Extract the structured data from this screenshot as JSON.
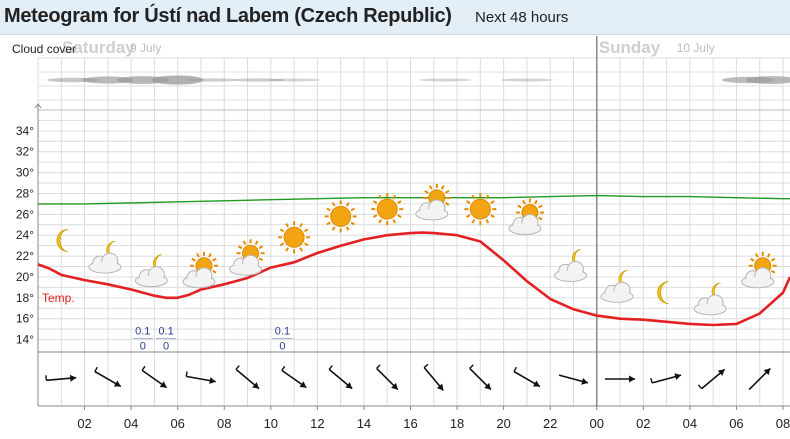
{
  "header": {
    "title": "Meteogram for Ústí nad Labem (Czech Republic)",
    "subtitle": "Next 48 hours"
  },
  "chart_data": {
    "type": "line",
    "days": [
      {
        "name": "Saturday",
        "date": "9 July",
        "start_hour": 0
      },
      {
        "name": "Sunday",
        "date": "10 July",
        "start_hour": 24
      }
    ],
    "cloud_cover_label": "Cloud cover",
    "temp_label": "Temp.",
    "y_ticks": [
      "34°",
      "32°",
      "30°",
      "28°",
      "26°",
      "24°",
      "22°",
      "20°",
      "18°",
      "16°",
      "14°"
    ],
    "ylim": [
      13,
      36
    ],
    "x_tick_labels": [
      "02",
      "04",
      "06",
      "08",
      "10",
      "12",
      "14",
      "16",
      "18",
      "20",
      "22",
      "00",
      "02",
      "04",
      "06",
      "08"
    ],
    "x_ticks_hours": [
      2,
      4,
      6,
      8,
      10,
      12,
      14,
      16,
      18,
      20,
      22,
      24,
      26,
      28,
      30,
      32
    ],
    "xlim": [
      0,
      32.3
    ],
    "grid": true,
    "series": [
      {
        "name": "Temp.",
        "color": "#e32022",
        "x": [
          0,
          0.5,
          1,
          2,
          3,
          4,
          5,
          5.5,
          6,
          6.5,
          7,
          8,
          9,
          10,
          11,
          12,
          13,
          14,
          15,
          16,
          16.5,
          17,
          18,
          19,
          20,
          21,
          22,
          23,
          24,
          25,
          26,
          27,
          28,
          29,
          30,
          31,
          32,
          32.3
        ],
        "values": [
          21.2,
          20.8,
          20.2,
          19.7,
          19.3,
          18.8,
          18.2,
          18.0,
          18.0,
          18.3,
          18.8,
          19.3,
          19.9,
          20.9,
          21.4,
          22.3,
          23.0,
          23.6,
          24.0,
          24.2,
          24.25,
          24.2,
          24.0,
          23.4,
          21.6,
          19.6,
          17.9,
          16.9,
          16.3,
          16.0,
          15.9,
          15.7,
          15.5,
          15.4,
          15.5,
          16.5,
          18.5,
          20.0
        ]
      },
      {
        "name": "",
        "color": "#1e9a1e",
        "x": [
          0,
          2,
          4,
          6,
          8,
          10,
          12,
          14,
          16,
          18,
          20,
          22,
          24,
          26,
          28,
          30,
          32,
          32.3
        ],
        "values": [
          27.0,
          27.0,
          27.1,
          27.2,
          27.3,
          27.4,
          27.5,
          27.6,
          27.6,
          27.6,
          27.6,
          27.7,
          27.8,
          27.7,
          27.7,
          27.6,
          27.5,
          27.5
        ]
      }
    ],
    "cloud_cover": [
      {
        "hour": 1.5,
        "amount": 0.35
      },
      {
        "hour": 3,
        "amount": 0.55
      },
      {
        "hour": 4.5,
        "amount": 0.6
      },
      {
        "hour": 6,
        "amount": 0.7
      },
      {
        "hour": 7.5,
        "amount": 0.25
      },
      {
        "hour": 9.5,
        "amount": 0.25
      },
      {
        "hour": 11,
        "amount": 0.12
      },
      {
        "hour": 17.5,
        "amount": 0.12
      },
      {
        "hour": 21,
        "amount": 0.15
      },
      {
        "hour": 30.5,
        "amount": 0.5
      },
      {
        "hour": 31.5,
        "amount": 0.6
      }
    ],
    "precipitation": [
      {
        "hour": 4.5,
        "upper": "0.1",
        "lower": "0"
      },
      {
        "hour": 5.5,
        "upper": "0.1",
        "lower": "0"
      },
      {
        "hour": 10.5,
        "upper": "0.1",
        "lower": "0"
      }
    ],
    "weather_symbols": [
      {
        "hour": 1.2,
        "temp": 23.5,
        "icon": "moon-icon"
      },
      {
        "hour": 3.0,
        "temp": 22.0,
        "icon": "moon-cloud-icon"
      },
      {
        "hour": 5.0,
        "temp": 20.7,
        "icon": "moon-cloud-icon"
      },
      {
        "hour": 7.0,
        "temp": 20.5,
        "icon": "sun-cloud-icon"
      },
      {
        "hour": 9.0,
        "temp": 21.7,
        "icon": "sun-cloud-icon"
      },
      {
        "hour": 11.0,
        "temp": 23.8,
        "icon": "sun-icon"
      },
      {
        "hour": 13.0,
        "temp": 25.8,
        "icon": "sun-icon"
      },
      {
        "hour": 15.0,
        "temp": 26.5,
        "icon": "sun-icon"
      },
      {
        "hour": 17.0,
        "temp": 27.0,
        "icon": "sun-cloud-icon"
      },
      {
        "hour": 19.0,
        "temp": 26.5,
        "icon": "sun-icon"
      },
      {
        "hour": 21.0,
        "temp": 25.6,
        "icon": "sun-cloud-icon"
      },
      {
        "hour": 23.0,
        "temp": 21.2,
        "icon": "moon-cloud-icon"
      },
      {
        "hour": 25.0,
        "temp": 19.2,
        "icon": "moon-cloud-icon"
      },
      {
        "hour": 27.0,
        "temp": 18.5,
        "icon": "moon-icon"
      },
      {
        "hour": 29.0,
        "temp": 18.0,
        "icon": "moon-cloud-icon"
      },
      {
        "hour": 31.0,
        "temp": 20.5,
        "icon": "sun-cloud-icon"
      }
    ],
    "wind": [
      {
        "hour": 1,
        "dir": 265,
        "flags": 1
      },
      {
        "hour": 3,
        "dir": 300,
        "flags": 1
      },
      {
        "hour": 5,
        "dir": 305,
        "flags": 1
      },
      {
        "hour": 7,
        "dir": 280,
        "flags": 1
      },
      {
        "hour": 9,
        "dir": 310,
        "flags": 1
      },
      {
        "hour": 11,
        "dir": 305,
        "flags": 1
      },
      {
        "hour": 13,
        "dir": 310,
        "flags": 1
      },
      {
        "hour": 15,
        "dir": 315,
        "flags": 1
      },
      {
        "hour": 17,
        "dir": 320,
        "flags": 1
      },
      {
        "hour": 19,
        "dir": 315,
        "flags": 1
      },
      {
        "hour": 21,
        "dir": 300,
        "flags": 1
      },
      {
        "hour": 23,
        "dir": 285,
        "flags": 0
      },
      {
        "hour": 25,
        "dir": 270,
        "flags": 0
      },
      {
        "hour": 27,
        "dir": 255,
        "flags": 1
      },
      {
        "hour": 29,
        "dir": 230,
        "flags": 1
      },
      {
        "hour": 31,
        "dir": 225,
        "flags": 0
      }
    ],
    "colors": {
      "grid": "#dcdcdc",
      "frame": "#888888",
      "day_separator": "#888888",
      "temp": "#e32022",
      "green_line": "#1e9a1e",
      "precip_text": "#2a3f9a",
      "cloud": "#9a9a9a",
      "sun": "#f2a413",
      "moon": "#f0c419"
    }
  }
}
